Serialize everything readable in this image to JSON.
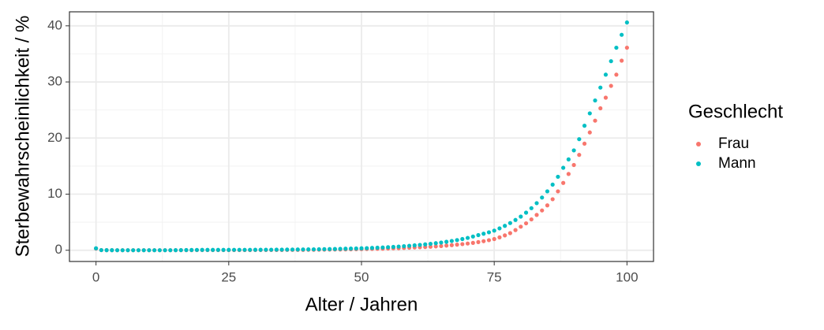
{
  "chart_data": {
    "type": "scatter",
    "xlabel": "Alter / Jahren",
    "ylabel": "Sterbewahrscheinlichkeit / %",
    "legend_title": "Geschlecht",
    "legend": "right",
    "grid": true,
    "xlim": [
      -5,
      105
    ],
    "xticks": [
      0,
      25,
      50,
      75,
      100
    ],
    "ylim": [
      -2,
      42.5
    ],
    "yticks": [
      0,
      10,
      20,
      30,
      40
    ],
    "x": [
      0,
      1,
      2,
      3,
      4,
      5,
      6,
      7,
      8,
      9,
      10,
      11,
      12,
      13,
      14,
      15,
      16,
      17,
      18,
      19,
      20,
      21,
      22,
      23,
      24,
      25,
      26,
      27,
      28,
      29,
      30,
      31,
      32,
      33,
      34,
      35,
      36,
      37,
      38,
      39,
      40,
      41,
      42,
      43,
      44,
      45,
      46,
      47,
      48,
      49,
      50,
      51,
      52,
      53,
      54,
      55,
      56,
      57,
      58,
      59,
      60,
      61,
      62,
      63,
      64,
      65,
      66,
      67,
      68,
      69,
      70,
      71,
      72,
      73,
      74,
      75,
      76,
      77,
      78,
      79,
      80,
      81,
      82,
      83,
      84,
      85,
      86,
      87,
      88,
      89,
      90,
      91,
      92,
      93,
      94,
      95,
      96,
      97,
      98,
      99,
      100
    ],
    "series": [
      {
        "name": "Frau",
        "color": "#F8766D",
        "values": [
          0.3,
          0.03,
          0.02,
          0.01,
          0.01,
          0.01,
          0.01,
          0.01,
          0.01,
          0.01,
          0.01,
          0.01,
          0.01,
          0.01,
          0.01,
          0.01,
          0.02,
          0.02,
          0.02,
          0.03,
          0.03,
          0.03,
          0.03,
          0.03,
          0.03,
          0.03,
          0.03,
          0.03,
          0.03,
          0.03,
          0.04,
          0.04,
          0.04,
          0.05,
          0.05,
          0.05,
          0.06,
          0.06,
          0.07,
          0.07,
          0.08,
          0.09,
          0.1,
          0.11,
          0.12,
          0.13,
          0.14,
          0.15,
          0.17,
          0.19,
          0.2,
          0.22,
          0.24,
          0.26,
          0.28,
          0.31,
          0.34,
          0.37,
          0.41,
          0.45,
          0.5,
          0.54,
          0.58,
          0.63,
          0.69,
          0.75,
          0.83,
          0.91,
          1.0,
          1.1,
          1.2,
          1.32,
          1.46,
          1.62,
          1.8,
          2.0,
          2.3,
          2.65,
          3.05,
          3.6,
          4.2,
          4.8,
          5.5,
          6.3,
          7.1,
          8.0,
          9.1,
          10.5,
          12.0,
          13.6,
          15.2,
          17.0,
          19.0,
          21.0,
          23.1,
          25.3,
          27.2,
          29.3,
          31.3,
          33.8,
          36.1
        ]
      },
      {
        "name": "Mann",
        "color": "#00BFC4",
        "values": [
          0.35,
          0.03,
          0.02,
          0.015,
          0.012,
          0.01,
          0.01,
          0.01,
          0.01,
          0.01,
          0.01,
          0.01,
          0.01,
          0.01,
          0.01,
          0.02,
          0.03,
          0.04,
          0.05,
          0.06,
          0.07,
          0.07,
          0.07,
          0.07,
          0.07,
          0.07,
          0.08,
          0.08,
          0.08,
          0.08,
          0.09,
          0.09,
          0.1,
          0.1,
          0.11,
          0.11,
          0.12,
          0.13,
          0.14,
          0.15,
          0.16,
          0.17,
          0.18,
          0.2,
          0.21,
          0.23,
          0.25,
          0.28,
          0.3,
          0.32,
          0.35,
          0.38,
          0.42,
          0.46,
          0.5,
          0.55,
          0.6,
          0.66,
          0.73,
          0.8,
          0.88,
          0.96,
          1.05,
          1.15,
          1.26,
          1.38,
          1.51,
          1.66,
          1.82,
          2.0,
          2.2,
          2.45,
          2.7,
          2.95,
          3.2,
          3.5,
          3.9,
          4.35,
          4.85,
          5.4,
          6.0,
          6.7,
          7.5,
          8.4,
          9.4,
          10.5,
          11.7,
          13.1,
          14.7,
          16.2,
          17.8,
          19.8,
          22.2,
          24.4,
          26.7,
          29.0,
          31.3,
          33.7,
          36.1,
          38.4,
          40.6
        ]
      }
    ]
  }
}
